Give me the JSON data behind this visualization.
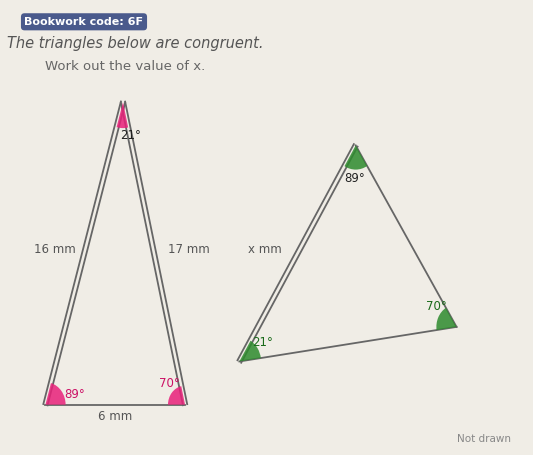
{
  "bg_color": "#f0ede6",
  "title1": "The triangles below are congruent.",
  "title2": "Work out the value of x.",
  "bookwork_label": "Bookwork code: 6F",
  "not_drawn_label": "Not drawn",
  "tri1": {
    "apex": [
      1.55,
      4.05
    ],
    "bl": [
      0.55,
      0.55
    ],
    "br": [
      2.35,
      0.55
    ],
    "angle_top": "21°",
    "angle_bl": "89°",
    "angle_br": "70°",
    "side_left": "16 mm",
    "side_right": "17 mm",
    "side_bottom": "6 mm",
    "color_top": "#e8217a",
    "color_bl": "#e8217a",
    "color_br": "#e8217a",
    "double_left": true,
    "double_right": true
  },
  "tri2": {
    "apex": [
      4.55,
      3.55
    ],
    "bl": [
      3.05,
      1.05
    ],
    "br": [
      5.85,
      1.45
    ],
    "angle_top": "89°",
    "angle_bl": "21°",
    "angle_br": "70°",
    "side_left": "x mm",
    "color_top": "#2e8b2e",
    "color_bl": "#2e8b2e",
    "color_br": "#2e8b2e",
    "double_left": true
  }
}
